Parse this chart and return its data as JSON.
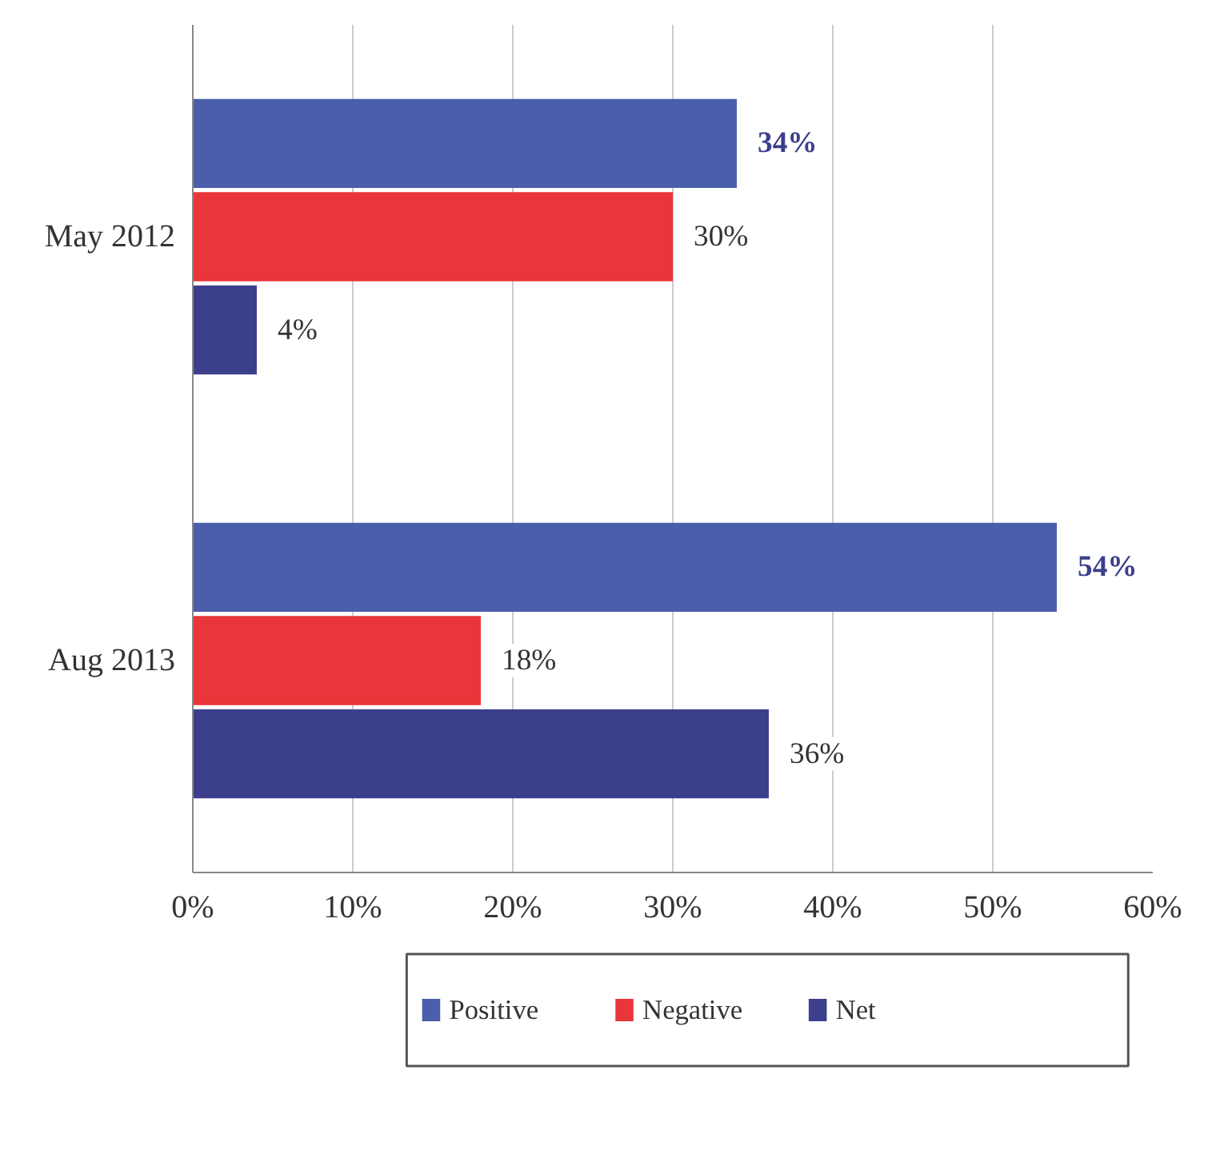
{
  "chart_data": {
    "type": "bar",
    "orientation": "horizontal",
    "categories": [
      "May 2012",
      "Aug 2013"
    ],
    "series": [
      {
        "name": "Positive",
        "color": "#4a5eab",
        "values": [
          34,
          54
        ],
        "value_labels": [
          "34%",
          "54%"
        ]
      },
      {
        "name": "Negative",
        "color": "#e8363a",
        "values": [
          30,
          18
        ],
        "value_labels": [
          "30%",
          "18%"
        ]
      },
      {
        "name": "Net",
        "color": "#3c3f8c",
        "values": [
          4,
          36
        ],
        "value_labels": [
          "4%",
          "36%"
        ]
      }
    ],
    "xlim": [
      0,
      60
    ],
    "xticks": [
      {
        "value": 0,
        "label": "0%"
      },
      {
        "value": 10,
        "label": "10%"
      },
      {
        "value": 20,
        "label": "20%"
      },
      {
        "value": 30,
        "label": "30%"
      },
      {
        "value": 40,
        "label": "40%"
      },
      {
        "value": 50,
        "label": "50%"
      },
      {
        "value": 60,
        "label": "60%"
      }
    ],
    "grid": "x",
    "legend": "bottom"
  }
}
